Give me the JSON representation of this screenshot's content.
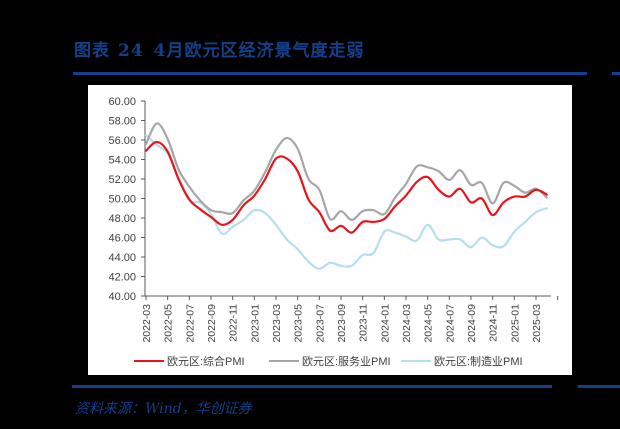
{
  "figure": {
    "label": "图表",
    "number": "24",
    "title": "4月欧元区经济景气度走弱"
  },
  "source": "资料来源：Wind，华创证券",
  "colors": {
    "title_blue": "#12408a",
    "composite": "#e8141c",
    "services": "#a6a6a6",
    "manufacturing": "#b4dfec"
  },
  "chart_data": {
    "type": "line",
    "title": "4月欧元区经济景气度走弱",
    "xlabel": "",
    "ylabel": "",
    "ylim": [
      40,
      60
    ],
    "yticks": [
      "60.00",
      "58.00",
      "56.00",
      "54.00",
      "52.00",
      "50.00",
      "48.00",
      "46.00",
      "44.00",
      "42.00",
      "40.00"
    ],
    "xtick_labels": [
      "2022-03",
      "2022-05",
      "2022-07",
      "2022-09",
      "2022-11",
      "2023-01",
      "2023-03",
      "2023-05",
      "2023-07",
      "2023-09",
      "2023-11",
      "2024-01",
      "2024-03",
      "2024-05",
      "2024-07",
      "2024-09",
      "2024-11",
      "2025-01",
      "2025-03"
    ],
    "grid": false,
    "legend_position": "bottom",
    "x": [
      "2022-03",
      "2022-04",
      "2022-05",
      "2022-06",
      "2022-07",
      "2022-08",
      "2022-09",
      "2022-10",
      "2022-11",
      "2022-12",
      "2023-01",
      "2023-02",
      "2023-03",
      "2023-04",
      "2023-05",
      "2023-06",
      "2023-07",
      "2023-08",
      "2023-09",
      "2023-10",
      "2023-11",
      "2023-12",
      "2024-01",
      "2024-02",
      "2024-03",
      "2024-04",
      "2024-05",
      "2024-06",
      "2024-07",
      "2024-08",
      "2024-09",
      "2024-10",
      "2024-11",
      "2024-12",
      "2025-01",
      "2025-02",
      "2025-03",
      "2025-04"
    ],
    "series": [
      {
        "name": "欧元区:综合PMI",
        "color": "#e8141c",
        "values": [
          54.9,
          55.8,
          54.8,
          52.0,
          49.9,
          48.9,
          48.1,
          47.3,
          47.8,
          49.3,
          50.3,
          52.0,
          54.1,
          54.1,
          52.8,
          49.9,
          48.6,
          46.7,
          47.2,
          46.5,
          47.6,
          47.6,
          47.9,
          49.2,
          50.3,
          51.7,
          52.2,
          50.9,
          50.2,
          51.0,
          49.6,
          50.0,
          48.3,
          49.6,
          50.2,
          50.2,
          50.9,
          50.4
        ]
      },
      {
        "name": "欧元区:服务业PMI",
        "color": "#a6a6a6",
        "values": [
          55.6,
          57.7,
          56.1,
          53.0,
          51.2,
          49.8,
          48.8,
          48.6,
          48.5,
          49.8,
          50.8,
          52.7,
          55.0,
          56.2,
          55.1,
          52.0,
          50.9,
          47.9,
          48.7,
          47.8,
          48.7,
          48.8,
          48.4,
          50.1,
          51.5,
          53.3,
          53.2,
          52.8,
          51.9,
          52.9,
          51.4,
          51.6,
          49.5,
          51.6,
          51.3,
          50.6,
          51.0,
          50.1
        ]
      },
      {
        "name": "欧元区:制造业PMI",
        "color": "#b4dfec",
        "values": [
          56.5,
          55.5,
          54.6,
          52.1,
          49.8,
          49.6,
          48.4,
          46.4,
          47.1,
          47.8,
          48.8,
          48.5,
          47.3,
          45.8,
          44.8,
          43.5,
          42.8,
          43.4,
          43.1,
          43.1,
          44.2,
          44.4,
          46.6,
          46.5,
          46.1,
          45.7,
          47.3,
          45.8,
          45.8,
          45.8,
          45.0,
          46.0,
          45.2,
          45.1,
          46.6,
          47.6,
          48.6,
          49.0
        ]
      }
    ]
  }
}
